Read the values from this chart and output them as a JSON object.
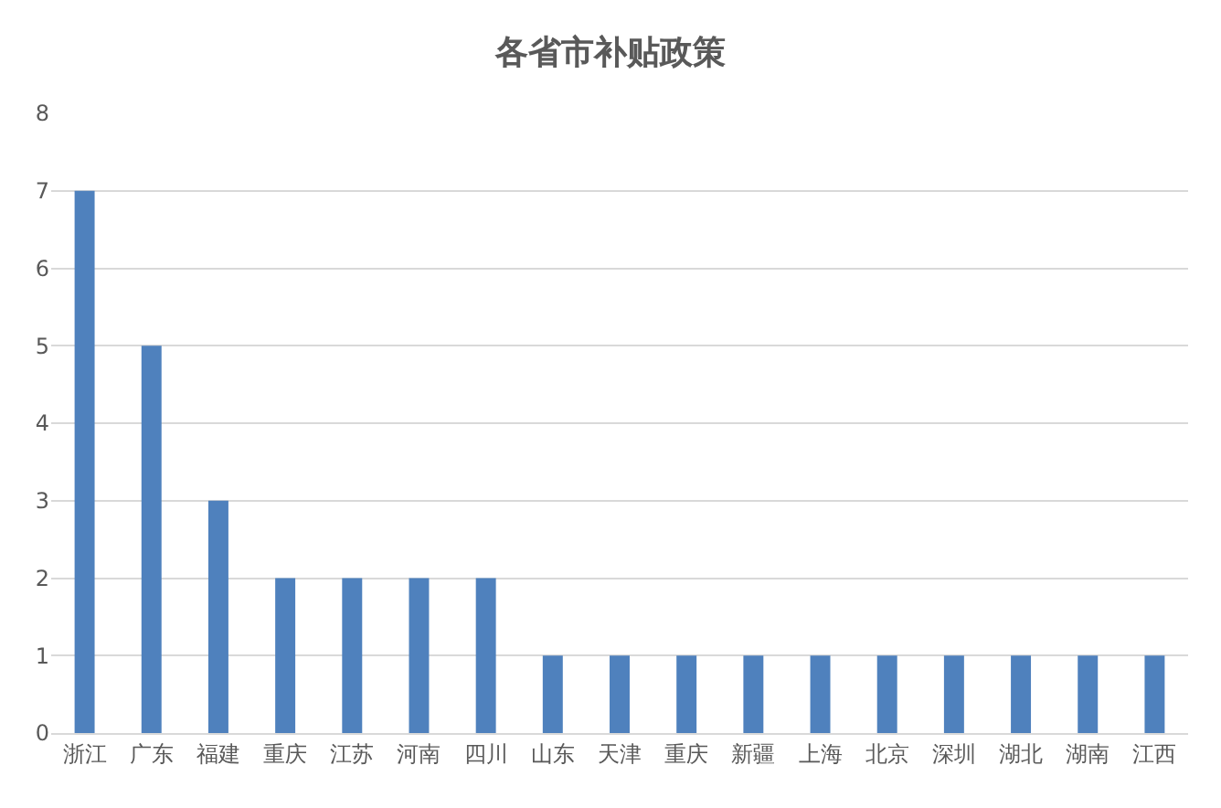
{
  "chart_data": {
    "type": "bar",
    "title": "各省市补贴政策",
    "categories": [
      "浙江",
      "广东",
      "福建",
      "重庆",
      "江苏",
      "河南",
      "四川",
      "山东",
      "天津",
      "重庆",
      "新疆",
      "上海",
      "北京",
      "深圳",
      "湖北",
      "湖南",
      "江西"
    ],
    "values": [
      7,
      5,
      3,
      2,
      2,
      2,
      2,
      1,
      1,
      1,
      1,
      1,
      1,
      1,
      1,
      1,
      1
    ],
    "color": "#4f81bd",
    "ylim": [
      0,
      8
    ],
    "yticks": [
      0,
      1,
      2,
      3,
      4,
      5,
      6,
      7,
      8
    ],
    "grid": "y",
    "legend": false
  }
}
